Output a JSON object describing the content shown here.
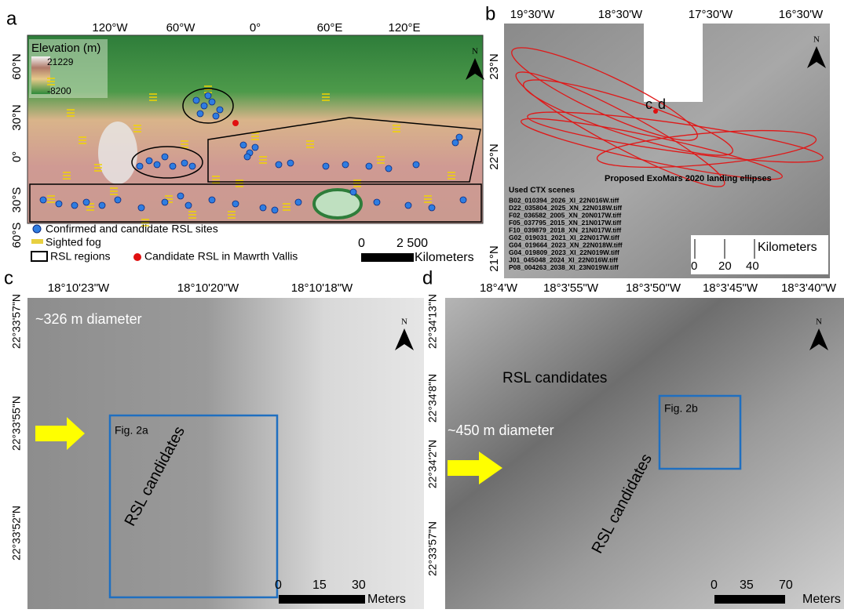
{
  "panel_a": {
    "label": "a",
    "longitudes": [
      "120°W",
      "60°W",
      "0°",
      "60°E",
      "120°E"
    ],
    "latitudes": [
      "60°N",
      "30°N",
      "0°",
      "30°S",
      "60°S"
    ],
    "elevation_title": "Elevation (m)",
    "elevation_max": 21229,
    "elevation_min": -8200,
    "north": "N",
    "legend": [
      "Confirmed and candidate RSL sites",
      "Sighted fog",
      "RSL regions",
      "Candidate RSL in Mawrth Vallis"
    ],
    "scale": [
      0,
      {
        "value": 2500,
        "label": "2 500"
      }
    ],
    "scale_unit": "Kilometers"
  },
  "panel_b": {
    "label": "b",
    "longitudes": [
      "19°30'W",
      "18°30'W",
      "17°30'W",
      "16°30'W"
    ],
    "latitudes": [
      "23°N",
      "22°N",
      "21°N"
    ],
    "north": "N",
    "site_labels": [
      "c",
      "d"
    ],
    "ellipses_title": "Proposed ExoMars 2020 landing ellipses",
    "scenes_title": "Used CTX scenes",
    "scenes": [
      "B02_010394_2026_XI_22N016W.tiff",
      "D22_035804_2025_XN_22N018W.tiff",
      "F02_036582_2005_XN_20N017W.tiff",
      "F05_037795_2015_XN_21N017W.tiff",
      "F10_039879_2018_XN_21N017W.tiff",
      "G02_019031_2021_XI_22N017W.tiff",
      "G04_019664_2023_XN_22N018W.tiff",
      "G04_019809_2023_XI_22N019W.tiff",
      "J01_045048_2024_XI_22N016W.tiff",
      "P08_004263_2038_XI_23N019W.tiff"
    ],
    "scale": [
      0,
      20,
      40
    ],
    "scale_unit": "Kilometers"
  },
  "panel_c": {
    "label": "c",
    "longitudes": [
      "18°10'23\"W",
      "18°10'20\"W",
      "18°10'18\"W"
    ],
    "latitudes": [
      "22°33'57\"N",
      "22°33'55\"N",
      "22°33'52\"N"
    ],
    "diameter": "~326 m diameter",
    "box_label": "Fig. 2a",
    "annotation": "RSL candidates",
    "north": "N",
    "scale": [
      0,
      15,
      30
    ],
    "scale_unit": "Meters"
  },
  "panel_d": {
    "label": "d",
    "longitudes": [
      "18°4'W",
      "18°3'55\"W",
      "18°3'50\"W",
      "18°3'45\"W",
      "18°3'40\"W"
    ],
    "latitudes": [
      "22°34'13\"N",
      "22°34'8\"N",
      "22°34'2\"N",
      "22°33'57\"N"
    ],
    "diameter": "~450 m diameter",
    "box_label": "Fig. 2b",
    "annotation": "RSL candidates",
    "north": "N",
    "scale": [
      0,
      35,
      70
    ],
    "scale_unit": "Meters"
  }
}
